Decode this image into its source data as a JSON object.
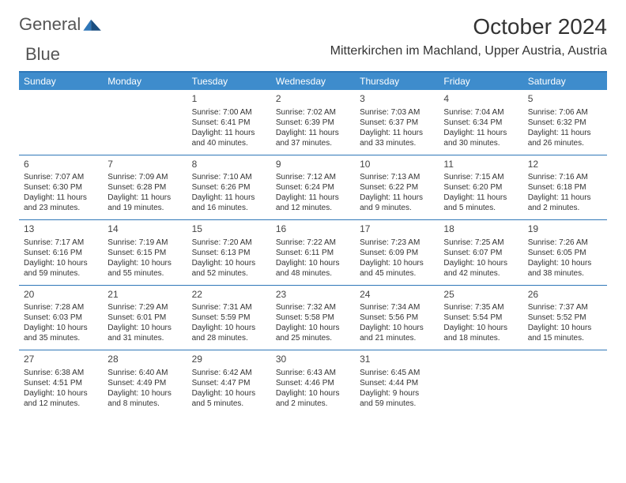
{
  "brand": {
    "word1": "General",
    "word2": "Blue"
  },
  "title": "October 2024",
  "location": "Mitterkirchen im Machland, Upper Austria, Austria",
  "colors": {
    "accent": "#3e8ccc",
    "rule": "#2f77b8",
    "text": "#333333",
    "brand_text": "#555555"
  },
  "weekdays": [
    "Sunday",
    "Monday",
    "Tuesday",
    "Wednesday",
    "Thursday",
    "Friday",
    "Saturday"
  ],
  "weeks": [
    [
      null,
      null,
      {
        "n": "1",
        "sr": "Sunrise: 7:00 AM",
        "ss": "Sunset: 6:41 PM",
        "d1": "Daylight: 11 hours",
        "d2": "and 40 minutes."
      },
      {
        "n": "2",
        "sr": "Sunrise: 7:02 AM",
        "ss": "Sunset: 6:39 PM",
        "d1": "Daylight: 11 hours",
        "d2": "and 37 minutes."
      },
      {
        "n": "3",
        "sr": "Sunrise: 7:03 AM",
        "ss": "Sunset: 6:37 PM",
        "d1": "Daylight: 11 hours",
        "d2": "and 33 minutes."
      },
      {
        "n": "4",
        "sr": "Sunrise: 7:04 AM",
        "ss": "Sunset: 6:34 PM",
        "d1": "Daylight: 11 hours",
        "d2": "and 30 minutes."
      },
      {
        "n": "5",
        "sr": "Sunrise: 7:06 AM",
        "ss": "Sunset: 6:32 PM",
        "d1": "Daylight: 11 hours",
        "d2": "and 26 minutes."
      }
    ],
    [
      {
        "n": "6",
        "sr": "Sunrise: 7:07 AM",
        "ss": "Sunset: 6:30 PM",
        "d1": "Daylight: 11 hours",
        "d2": "and 23 minutes."
      },
      {
        "n": "7",
        "sr": "Sunrise: 7:09 AM",
        "ss": "Sunset: 6:28 PM",
        "d1": "Daylight: 11 hours",
        "d2": "and 19 minutes."
      },
      {
        "n": "8",
        "sr": "Sunrise: 7:10 AM",
        "ss": "Sunset: 6:26 PM",
        "d1": "Daylight: 11 hours",
        "d2": "and 16 minutes."
      },
      {
        "n": "9",
        "sr": "Sunrise: 7:12 AM",
        "ss": "Sunset: 6:24 PM",
        "d1": "Daylight: 11 hours",
        "d2": "and 12 minutes."
      },
      {
        "n": "10",
        "sr": "Sunrise: 7:13 AM",
        "ss": "Sunset: 6:22 PM",
        "d1": "Daylight: 11 hours",
        "d2": "and 9 minutes."
      },
      {
        "n": "11",
        "sr": "Sunrise: 7:15 AM",
        "ss": "Sunset: 6:20 PM",
        "d1": "Daylight: 11 hours",
        "d2": "and 5 minutes."
      },
      {
        "n": "12",
        "sr": "Sunrise: 7:16 AM",
        "ss": "Sunset: 6:18 PM",
        "d1": "Daylight: 11 hours",
        "d2": "and 2 minutes."
      }
    ],
    [
      {
        "n": "13",
        "sr": "Sunrise: 7:17 AM",
        "ss": "Sunset: 6:16 PM",
        "d1": "Daylight: 10 hours",
        "d2": "and 59 minutes."
      },
      {
        "n": "14",
        "sr": "Sunrise: 7:19 AM",
        "ss": "Sunset: 6:15 PM",
        "d1": "Daylight: 10 hours",
        "d2": "and 55 minutes."
      },
      {
        "n": "15",
        "sr": "Sunrise: 7:20 AM",
        "ss": "Sunset: 6:13 PM",
        "d1": "Daylight: 10 hours",
        "d2": "and 52 minutes."
      },
      {
        "n": "16",
        "sr": "Sunrise: 7:22 AM",
        "ss": "Sunset: 6:11 PM",
        "d1": "Daylight: 10 hours",
        "d2": "and 48 minutes."
      },
      {
        "n": "17",
        "sr": "Sunrise: 7:23 AM",
        "ss": "Sunset: 6:09 PM",
        "d1": "Daylight: 10 hours",
        "d2": "and 45 minutes."
      },
      {
        "n": "18",
        "sr": "Sunrise: 7:25 AM",
        "ss": "Sunset: 6:07 PM",
        "d1": "Daylight: 10 hours",
        "d2": "and 42 minutes."
      },
      {
        "n": "19",
        "sr": "Sunrise: 7:26 AM",
        "ss": "Sunset: 6:05 PM",
        "d1": "Daylight: 10 hours",
        "d2": "and 38 minutes."
      }
    ],
    [
      {
        "n": "20",
        "sr": "Sunrise: 7:28 AM",
        "ss": "Sunset: 6:03 PM",
        "d1": "Daylight: 10 hours",
        "d2": "and 35 minutes."
      },
      {
        "n": "21",
        "sr": "Sunrise: 7:29 AM",
        "ss": "Sunset: 6:01 PM",
        "d1": "Daylight: 10 hours",
        "d2": "and 31 minutes."
      },
      {
        "n": "22",
        "sr": "Sunrise: 7:31 AM",
        "ss": "Sunset: 5:59 PM",
        "d1": "Daylight: 10 hours",
        "d2": "and 28 minutes."
      },
      {
        "n": "23",
        "sr": "Sunrise: 7:32 AM",
        "ss": "Sunset: 5:58 PM",
        "d1": "Daylight: 10 hours",
        "d2": "and 25 minutes."
      },
      {
        "n": "24",
        "sr": "Sunrise: 7:34 AM",
        "ss": "Sunset: 5:56 PM",
        "d1": "Daylight: 10 hours",
        "d2": "and 21 minutes."
      },
      {
        "n": "25",
        "sr": "Sunrise: 7:35 AM",
        "ss": "Sunset: 5:54 PM",
        "d1": "Daylight: 10 hours",
        "d2": "and 18 minutes."
      },
      {
        "n": "26",
        "sr": "Sunrise: 7:37 AM",
        "ss": "Sunset: 5:52 PM",
        "d1": "Daylight: 10 hours",
        "d2": "and 15 minutes."
      }
    ],
    [
      {
        "n": "27",
        "sr": "Sunrise: 6:38 AM",
        "ss": "Sunset: 4:51 PM",
        "d1": "Daylight: 10 hours",
        "d2": "and 12 minutes."
      },
      {
        "n": "28",
        "sr": "Sunrise: 6:40 AM",
        "ss": "Sunset: 4:49 PM",
        "d1": "Daylight: 10 hours",
        "d2": "and 8 minutes."
      },
      {
        "n": "29",
        "sr": "Sunrise: 6:42 AM",
        "ss": "Sunset: 4:47 PM",
        "d1": "Daylight: 10 hours",
        "d2": "and 5 minutes."
      },
      {
        "n": "30",
        "sr": "Sunrise: 6:43 AM",
        "ss": "Sunset: 4:46 PM",
        "d1": "Daylight: 10 hours",
        "d2": "and 2 minutes."
      },
      {
        "n": "31",
        "sr": "Sunrise: 6:45 AM",
        "ss": "Sunset: 4:44 PM",
        "d1": "Daylight: 9 hours",
        "d2": "and 59 minutes."
      },
      null,
      null
    ]
  ]
}
